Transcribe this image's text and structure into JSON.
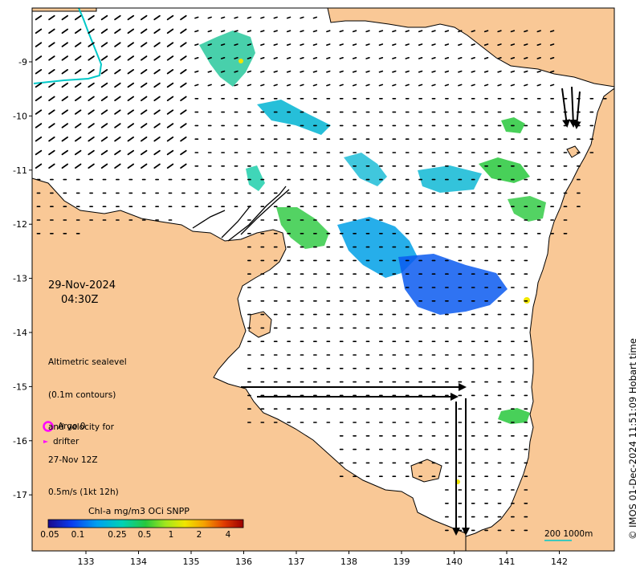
{
  "map": {
    "date": "29-Nov-2024",
    "time": "04:30Z",
    "legend_lines": [
      "Altimetric sealevel",
      "(0.1m contours)",
      "and velocity for",
      "27-Nov 12Z",
      "0.5m/s (1kt 12h)"
    ],
    "lon_ticks": [
      "133",
      "134",
      "135",
      "136",
      "137",
      "138",
      "139",
      "140",
      "141",
      "142"
    ],
    "lat_ticks": [
      "-9",
      "-10",
      "-11",
      "-12",
      "-13",
      "-14",
      "-15",
      "-16",
      "-17"
    ],
    "argo_label": "Argo 0",
    "drifter_label": "drifter",
    "colorbar": {
      "title": "Chl-a mg/m3 OCi SNPP",
      "ticks": [
        "0.05",
        "0.1",
        "0.25",
        "0.5",
        "1",
        "2",
        "4"
      ]
    },
    "scale_bar": "200  1000m",
    "credit": "© IMOS 01-Dec-2024 11:51:09 Hobart time",
    "colors": {
      "land": "#f9c896",
      "ocean": "#ffffff",
      "arrow": "#000000",
      "argo_marker": "#ff00ff",
      "drifter_marker": "#ff00ff",
      "contour": "#00c8c8"
    }
  }
}
